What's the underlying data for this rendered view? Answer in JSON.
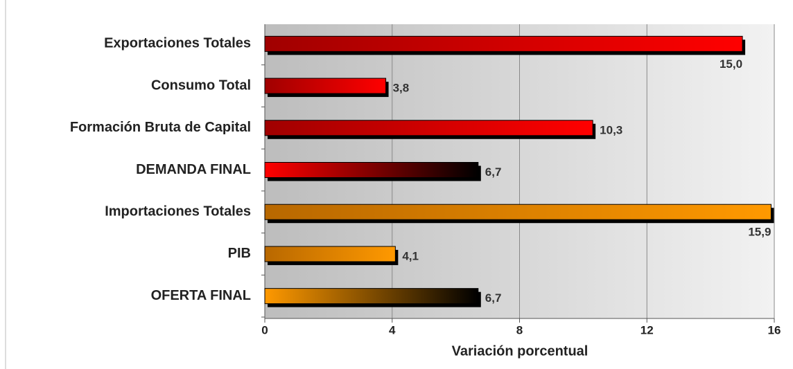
{
  "chart_data": {
    "type": "bar",
    "orientation": "horizontal",
    "xlabel": "Variación porcentual",
    "categories": [
      "Exportaciones Totales",
      "Consumo Total",
      "Formación Bruta de Capital",
      "DEMANDA FINAL",
      "Importaciones Totales",
      "PIB",
      "OFERTA FINAL"
    ],
    "values": [
      15.0,
      3.8,
      10.3,
      6.7,
      15.9,
      4.1,
      6.7
    ],
    "value_labels": [
      "15,0",
      "3,8",
      "10,3",
      "6,7",
      "15,9",
      "4,1",
      "6,7"
    ],
    "colors": [
      [
        "#a00000",
        "#ff0000"
      ],
      [
        "#a00000",
        "#ff0000"
      ],
      [
        "#a00000",
        "#ff0000"
      ],
      [
        "#ff0000",
        "#000000"
      ],
      [
        "#b86800",
        "#ff9900"
      ],
      [
        "#b86800",
        "#ff9900"
      ],
      [
        "#ff9900",
        "#000000"
      ]
    ],
    "xlim": [
      0,
      16
    ],
    "xticks": [
      0,
      4,
      8,
      12,
      16
    ],
    "grid": true
  }
}
